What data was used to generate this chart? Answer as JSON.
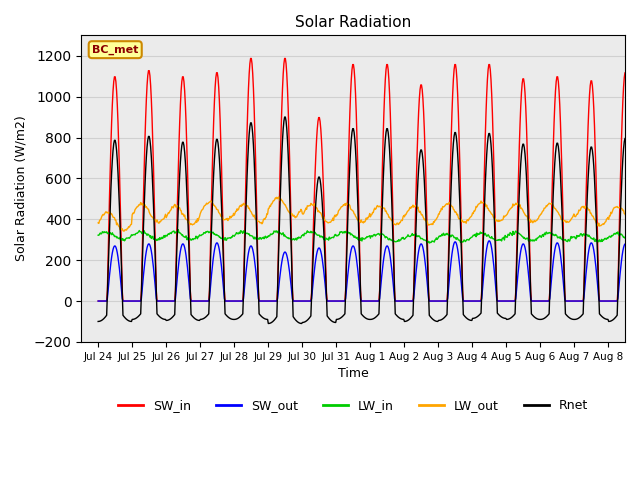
{
  "title": "Solar Radiation",
  "ylabel": "Solar Radiation (W/m2)",
  "xlabel": "Time",
  "ylim": [
    -200,
    1300
  ],
  "yticks": [
    -200,
    0,
    200,
    400,
    600,
    800,
    1000,
    1200
  ],
  "date_labels": [
    "Jul 24",
    "Jul 25",
    "Jul 26",
    "Jul 27",
    "Jul 28",
    "Jul 29",
    "Jul 30",
    "Jul 31",
    "Aug 1",
    "Aug 2",
    "Aug 3",
    "Aug 4",
    "Aug 5",
    "Aug 6",
    "Aug 7",
    "Aug 8"
  ],
  "n_days": 16,
  "points_per_day": 48,
  "SW_in_peak": [
    1100,
    1130,
    1100,
    1120,
    1190,
    1190,
    900,
    1160,
    1160,
    1060,
    1160,
    1160,
    1090,
    1100,
    1080,
    1120
  ],
  "SW_out_peak": [
    270,
    280,
    280,
    285,
    270,
    240,
    260,
    270,
    270,
    280,
    290,
    295,
    280,
    285,
    285,
    280
  ],
  "LW_in_base": [
    320,
    320,
    320,
    320,
    320,
    320,
    320,
    320,
    310,
    305,
    310,
    315,
    315,
    315,
    310,
    310
  ],
  "LW_out_base": [
    390,
    430,
    420,
    440,
    430,
    460,
    430,
    430,
    420,
    420,
    430,
    435,
    430,
    430,
    415,
    415
  ],
  "Rnet_night": [
    -100,
    -90,
    -95,
    -90,
    -90,
    -110,
    -105,
    -90,
    -90,
    -100,
    -95,
    -85,
    -90,
    -90,
    -90,
    -100
  ],
  "colors": {
    "SW_in": "#ff0000",
    "SW_out": "#0000ff",
    "LW_in": "#00cc00",
    "LW_out": "#ffa500",
    "Rnet": "#000000"
  },
  "label_box": "BC_met",
  "label_box_color": "#ffff99",
  "label_box_edge": "#cc8800",
  "background_color": "#ffffff",
  "grid_color": "#d0d0d0"
}
